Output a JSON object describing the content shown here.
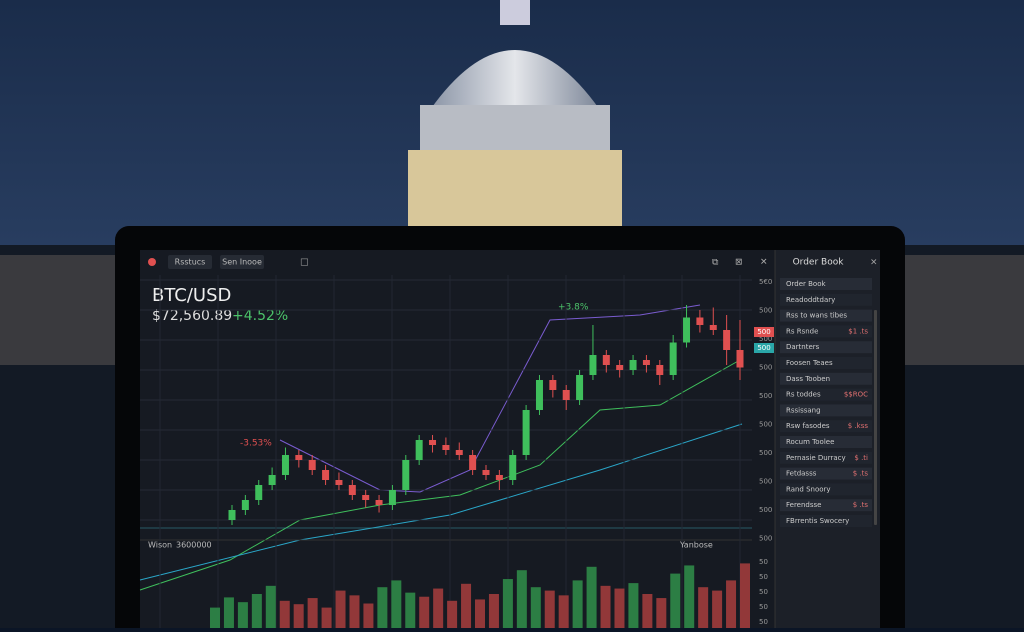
{
  "toolbar": {
    "tabs": [
      "Rsstucs",
      "Sen Inooe"
    ]
  },
  "ticker": {
    "symbol": "BTC/USD",
    "price": "$72,560.89",
    "change": "+4.52%"
  },
  "annotations": [
    "+3.8%",
    "-3.53%"
  ],
  "price_axis": [
    "5€0",
    "500",
    "500",
    "500",
    "500",
    "500",
    "500",
    "500",
    "500",
    "500"
  ],
  "price_tags": [
    "500",
    "500"
  ],
  "volume_panel": {
    "labels": [
      "Wison",
      "3600000",
      "Yanbose"
    ],
    "axis": [
      "50",
      "50",
      "50",
      "50",
      "50"
    ]
  },
  "chart": {
    "ylim": [
      0,
      100
    ],
    "vlim": [
      0,
      100
    ],
    "candles": [
      {
        "o": 4,
        "h": 10,
        "l": 2,
        "c": 8
      },
      {
        "o": 8,
        "h": 14,
        "l": 6,
        "c": 12
      },
      {
        "o": 12,
        "h": 20,
        "l": 10,
        "c": 18
      },
      {
        "o": 18,
        "h": 25,
        "l": 16,
        "c": 22
      },
      {
        "o": 22,
        "h": 33,
        "l": 20,
        "c": 30
      },
      {
        "o": 30,
        "h": 32,
        "l": 25,
        "c": 28
      },
      {
        "o": 28,
        "h": 30,
        "l": 22,
        "c": 24
      },
      {
        "o": 24,
        "h": 26,
        "l": 18,
        "c": 20
      },
      {
        "o": 20,
        "h": 23,
        "l": 16,
        "c": 18
      },
      {
        "o": 18,
        "h": 20,
        "l": 12,
        "c": 14
      },
      {
        "o": 14,
        "h": 16,
        "l": 9,
        "c": 12
      },
      {
        "o": 12,
        "h": 14,
        "l": 7,
        "c": 10
      },
      {
        "o": 10,
        "h": 18,
        "l": 8,
        "c": 16
      },
      {
        "o": 16,
        "h": 30,
        "l": 14,
        "c": 28
      },
      {
        "o": 28,
        "h": 38,
        "l": 26,
        "c": 36
      },
      {
        "o": 36,
        "h": 38,
        "l": 31,
        "c": 34
      },
      {
        "o": 34,
        "h": 37,
        "l": 30,
        "c": 32
      },
      {
        "o": 32,
        "h": 35,
        "l": 28,
        "c": 30
      },
      {
        "o": 30,
        "h": 32,
        "l": 22,
        "c": 24
      },
      {
        "o": 24,
        "h": 26,
        "l": 20,
        "c": 22
      },
      {
        "o": 22,
        "h": 24,
        "l": 16,
        "c": 20
      },
      {
        "o": 20,
        "h": 32,
        "l": 18,
        "c": 30
      },
      {
        "o": 30,
        "h": 50,
        "l": 28,
        "c": 48
      },
      {
        "o": 48,
        "h": 62,
        "l": 46,
        "c": 60
      },
      {
        "o": 60,
        "h": 62,
        "l": 53,
        "c": 56
      },
      {
        "o": 56,
        "h": 58,
        "l": 48,
        "c": 52
      },
      {
        "o": 52,
        "h": 64,
        "l": 50,
        "c": 62
      },
      {
        "o": 62,
        "h": 82,
        "l": 60,
        "c": 70
      },
      {
        "o": 70,
        "h": 72,
        "l": 63,
        "c": 66
      },
      {
        "o": 66,
        "h": 68,
        "l": 61,
        "c": 64
      },
      {
        "o": 64,
        "h": 70,
        "l": 62,
        "c": 68
      },
      {
        "o": 68,
        "h": 70,
        "l": 63,
        "c": 66
      },
      {
        "o": 66,
        "h": 68,
        "l": 58,
        "c": 62
      },
      {
        "o": 62,
        "h": 78,
        "l": 60,
        "c": 75
      },
      {
        "o": 75,
        "h": 90,
        "l": 73,
        "c": 85
      },
      {
        "o": 85,
        "h": 88,
        "l": 79,
        "c": 82
      },
      {
        "o": 82,
        "h": 89,
        "l": 78,
        "c": 80
      },
      {
        "o": 80,
        "h": 86,
        "l": 66,
        "c": 72
      },
      {
        "o": 72,
        "h": 84,
        "l": 60,
        "c": 65
      }
    ],
    "volumes": [
      30,
      45,
      38,
      50,
      62,
      40,
      35,
      44,
      30,
      55,
      48,
      36,
      60,
      70,
      52,
      46,
      58,
      40,
      65,
      42,
      50,
      72,
      85,
      60,
      55,
      48,
      70,
      90,
      62,
      58,
      66,
      50,
      44,
      80,
      92,
      60,
      55,
      70,
      95
    ]
  },
  "sidebar": {
    "title": "Order Book",
    "rows": [
      {
        "label": "Order Book"
      },
      {
        "label": "Readoddtdary"
      },
      {
        "label": "Rss to wans tibes"
      },
      {
        "label": "Rs Rsnde",
        "value": "$1 .ts"
      },
      {
        "label": "Dartnters"
      },
      {
        "label": "Foosen Teaes"
      },
      {
        "label": "Dass Tooben"
      },
      {
        "label": "Rs toddes",
        "value": "$$ROC"
      },
      {
        "label": "Rssissang"
      },
      {
        "label": "Rsw fasodes",
        "value": "$ .kss"
      },
      {
        "label": "Rocum Toolee"
      },
      {
        "label": "Pernasie Durracy",
        "value": "$ .ti"
      },
      {
        "label": "Fetdasss",
        "value": "$ .ts"
      },
      {
        "label": "Rand Snoory"
      },
      {
        "label": "Ferendsse",
        "value": "$ .ts"
      },
      {
        "label": "FBrrentis Swocery"
      }
    ]
  }
}
